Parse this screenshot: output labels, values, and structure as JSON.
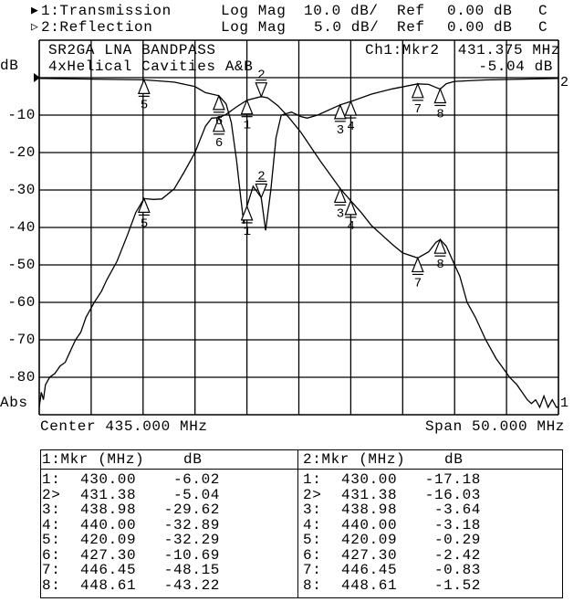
{
  "header": {
    "ch1": {
      "indicator": "▶",
      "label": "1:Transmission",
      "format": "Log Mag",
      "scale": "10.0 dB/",
      "ref_label": "Ref",
      "ref_value": "0.00 dB",
      "flag": "C"
    },
    "ch2": {
      "indicator": "▷",
      "label": "2:Reflection",
      "format": "Log Mag",
      "scale": "5.0 dB/",
      "ref_label": "Ref",
      "ref_value": "0.00 dB",
      "flag": "C"
    }
  },
  "title_box": {
    "line1": "SR2GA LNA BANDPASS",
    "line2": "4xHelical Cavities A&B",
    "active_marker": "Ch1:Mkr2",
    "marker_freq": "431.375 MHz",
    "marker_value": "-5.04 dB"
  },
  "footer": {
    "center": "Center 435.000 MHz",
    "span": "Span 50.000 MHz"
  },
  "colors": {
    "trace": "#000000",
    "background": "#ffffff",
    "grid": "#000000"
  },
  "chart_data": {
    "type": "line",
    "xlim": [
      410,
      460
    ],
    "x_unit": "MHz",
    "grid": true,
    "ylabel_top": "dB",
    "ylabel_bottom": "Abs",
    "y_tick_labels": [
      "-10",
      "-20",
      "-30",
      "-40",
      "-50",
      "-60",
      "-70",
      "-80"
    ],
    "series": [
      {
        "name": "1:Transmission",
        "trace_label": "1",
        "scale_db_per_div": 10,
        "ref_db": 0,
        "x": [
          410,
          410.2,
          410.4,
          410.6,
          411,
          411.5,
          412,
          412.5,
          413,
          413.5,
          414,
          414.5,
          415.3,
          416,
          416.5,
          417.5,
          418.5,
          419.3,
          420.09,
          421,
          421.8,
          423,
          424,
          425,
          426,
          426.6,
          427.3,
          428,
          429,
          430,
          431.38,
          432,
          433,
          434,
          435.2,
          437,
          438.98,
          440,
          441,
          442,
          443,
          444,
          445,
          446.45,
          447.5,
          448.2,
          448.61,
          449.2,
          450,
          450.5,
          451.2,
          452,
          453,
          454,
          455.3,
          456,
          456.5,
          457,
          457.4,
          457.8,
          458.2,
          458.6,
          459,
          459.4,
          459.8,
          460
        ],
        "y": [
          -88,
          -84,
          -86,
          -82,
          -80,
          -79,
          -77,
          -76,
          -73,
          -70,
          -68,
          -64,
          -60,
          -57,
          -54,
          -49,
          -42,
          -36,
          -32.29,
          -32.5,
          -32.4,
          -29.7,
          -25,
          -20,
          -13,
          -10.8,
          -10.69,
          -9.8,
          -7.8,
          -6.02,
          -5.04,
          -5.4,
          -7.5,
          -10.5,
          -14.6,
          -22,
          -29.62,
          -32.89,
          -36,
          -39.5,
          -42,
          -44.5,
          -46.8,
          -48.15,
          -46.5,
          -44,
          -43.22,
          -45,
          -50,
          -53,
          -60,
          -64,
          -70,
          -75,
          -80,
          -82,
          -84,
          -86,
          -87,
          -86,
          -88,
          -85,
          -88,
          -86,
          -88,
          -88
        ]
      },
      {
        "name": "2:Reflection",
        "trace_label": "2",
        "scale_db_per_div": 5,
        "ref_db": 0,
        "x": [
          410,
          415,
          420.09,
          423,
          425,
          426,
          427.3,
          428,
          428.5,
          429,
          429.4,
          429.7,
          430,
          430.6,
          431.38,
          431.8,
          432.3,
          432.8,
          433.3,
          434.3,
          435.2,
          435.8,
          436.8,
          438.98,
          440,
          442,
          444,
          446.45,
          447.5,
          448.2,
          448.61,
          449.2,
          450,
          453,
          460
        ],
        "y": [
          -0.1,
          -0.2,
          -0.29,
          -0.6,
          -1.2,
          -2.0,
          -2.42,
          -3.5,
          -6,
          -11,
          -16,
          -19.5,
          -17.18,
          -14.5,
          -16.03,
          -20.4,
          -15,
          -8,
          -5,
          -4.6,
          -5.2,
          -5.4,
          -5.0,
          -3.64,
          -3.18,
          -2.2,
          -1.5,
          -0.83,
          -0.9,
          -1.3,
          -1.52,
          -0.8,
          -0.5,
          -0.3,
          -0.1
        ]
      }
    ]
  },
  "marker_table": {
    "ch1": {
      "header_mkr": "1:Mkr (MHz)",
      "header_db": "dB",
      "rows": [
        {
          "id": "1:",
          "freq": "430.00",
          "db": "-6.02"
        },
        {
          "id": "2>",
          "freq": "431.38",
          "db": "-5.04"
        },
        {
          "id": "3:",
          "freq": "438.98",
          "db": "-29.62"
        },
        {
          "id": "4:",
          "freq": "440.00",
          "db": "-32.89"
        },
        {
          "id": "5:",
          "freq": "420.09",
          "db": "-32.29"
        },
        {
          "id": "6:",
          "freq": "427.30",
          "db": "-10.69"
        },
        {
          "id": "7:",
          "freq": "446.45",
          "db": "-48.15"
        },
        {
          "id": "8:",
          "freq": "448.61",
          "db": "-43.22"
        }
      ]
    },
    "ch2": {
      "header_mkr": "2:Mkr (MHz)",
      "header_db": "dB",
      "rows": [
        {
          "id": "1:",
          "freq": "430.00",
          "db": "-17.18"
        },
        {
          "id": "2>",
          "freq": "431.38",
          "db": "-16.03"
        },
        {
          "id": "3:",
          "freq": "438.98",
          "db": "-3.64"
        },
        {
          "id": "4:",
          "freq": "440.00",
          "db": "-3.18"
        },
        {
          "id": "5:",
          "freq": "420.09",
          "db": "-0.29"
        },
        {
          "id": "6:",
          "freq": "427.30",
          "db": "-2.42"
        },
        {
          "id": "7:",
          "freq": "446.45",
          "db": "-0.83"
        },
        {
          "id": "8:",
          "freq": "448.61",
          "db": "-1.52"
        }
      ]
    }
  },
  "markers": [
    {
      "label": "1",
      "freq": 430.0,
      "ch1_db": -6.02,
      "ch2_db": -17.18,
      "active": false
    },
    {
      "label": "2",
      "freq": 431.38,
      "ch1_db": -5.04,
      "ch2_db": -16.03,
      "active": true
    },
    {
      "label": "3",
      "freq": 438.98,
      "ch1_db": -29.62,
      "ch2_db": -3.64,
      "active": false
    },
    {
      "label": "4",
      "freq": 440.0,
      "ch1_db": -32.89,
      "ch2_db": -3.18,
      "active": false
    },
    {
      "label": "5",
      "freq": 420.09,
      "ch1_db": -32.29,
      "ch2_db": -0.29,
      "active": false
    },
    {
      "label": "6",
      "freq": 427.3,
      "ch1_db": -10.69,
      "ch2_db": -2.42,
      "active": false
    },
    {
      "label": "7",
      "freq": 446.45,
      "ch1_db": -48.15,
      "ch2_db": -0.83,
      "active": false
    },
    {
      "label": "8",
      "freq": 448.61,
      "ch1_db": -43.22,
      "ch2_db": -1.52,
      "active": false
    }
  ]
}
